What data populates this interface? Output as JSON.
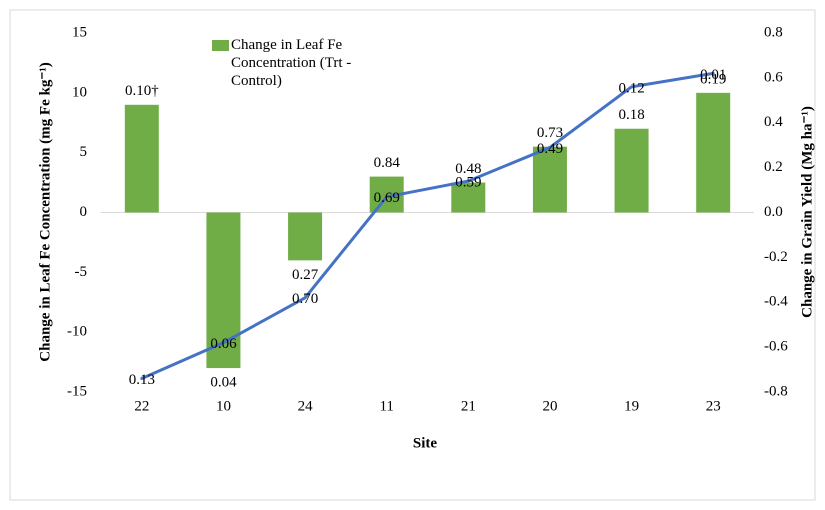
{
  "chart_data": {
    "type": "bar_line",
    "x_label": "Site",
    "y_label": "Change in Leaf Fe Concentration (mg Fe kg⁻¹)",
    "y2_label": "Change in Grain Yield (Mg ha⁻¹)",
    "categories": [
      "22",
      "10",
      "24",
      "11",
      "21",
      "20",
      "19",
      "23"
    ],
    "series": [
      {
        "name": "Change in Leaf Fe Concentration (Trt - Control)",
        "color": "#70ad47",
        "type": "bar",
        "values": [
          9,
          -13,
          -4,
          3,
          2.5,
          5.5,
          7,
          10
        ],
        "annotations": [
          "0.10†",
          "0.04",
          "0.27",
          "0.84",
          "0.48",
          "0.73",
          "0.18",
          "0.19"
        ]
      },
      {
        "color": "#4472c4",
        "type": "line",
        "axis": "y2",
        "values": [
          -0.74,
          -0.58,
          -0.38,
          0.07,
          0.14,
          0.29,
          0.56,
          0.62
        ],
        "annotations": [
          "0.13",
          "0.06",
          "0.70",
          "0.69",
          "0.59",
          "0.49",
          "0.12",
          "0.01"
        ]
      }
    ],
    "ylim": [
      -15,
      15
    ],
    "yticks": [
      -15,
      -10,
      -5,
      0,
      5,
      10,
      15
    ],
    "y2lim": [
      -0.8,
      0.8
    ],
    "y2ticks": [
      {
        "value": -0.8,
        "label": "-0.8"
      },
      {
        "value": -0.6,
        "label": "-0.6"
      },
      {
        "value": -0.4,
        "label": "-0.4"
      },
      {
        "value": -0.2,
        "label": "-0.2"
      },
      {
        "value": 0,
        "label": "0.0"
      },
      {
        "value": 0.2,
        "label": "0.2"
      },
      {
        "value": 0.4,
        "label": "0.4"
      },
      {
        "value": 0.6,
        "label": "0.6"
      },
      {
        "value": 0.8,
        "label": "0.8"
      }
    ],
    "grid": false
  }
}
